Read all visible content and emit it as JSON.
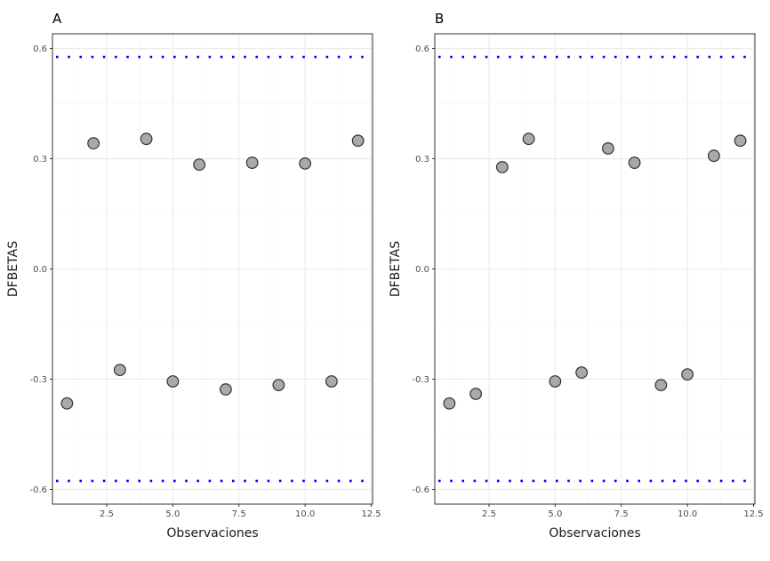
{
  "chart_data": [
    {
      "type": "scatter",
      "title": "A",
      "xlabel": "Observaciones",
      "ylabel": "DFBETAS",
      "xlim": [
        0.45,
        12.55
      ],
      "ylim": [
        -0.64,
        0.64
      ],
      "xticks": [
        2.5,
        5.0,
        7.5,
        10.0,
        12.5
      ],
      "xtick_labels": [
        "2.5",
        "5.0",
        "7.5",
        "10.0",
        "12.5"
      ],
      "yticks": [
        -0.6,
        -0.3,
        0.0,
        0.3,
        0.6
      ],
      "ytick_labels": [
        "-0.6",
        "-0.3",
        "0.0",
        "0.3",
        "0.6"
      ],
      "grid": true,
      "thresholds": [
        0.577,
        -0.577
      ],
      "threshold_color": "#0000ff",
      "x": [
        1,
        2,
        3,
        4,
        5,
        6,
        7,
        8,
        9,
        10,
        11,
        12
      ],
      "y": [
        -0.366,
        0.342,
        -0.275,
        0.354,
        -0.306,
        0.284,
        -0.328,
        0.289,
        -0.316,
        0.287,
        -0.306,
        0.349
      ]
    },
    {
      "type": "scatter",
      "title": "B",
      "xlabel": "Observaciones",
      "ylabel": "DFBETAS",
      "xlim": [
        0.45,
        12.55
      ],
      "ylim": [
        -0.64,
        0.64
      ],
      "xticks": [
        2.5,
        5.0,
        7.5,
        10.0,
        12.5
      ],
      "xtick_labels": [
        "2.5",
        "5.0",
        "7.5",
        "10.0",
        "12.5"
      ],
      "yticks": [
        -0.6,
        -0.3,
        0.0,
        0.3,
        0.6
      ],
      "ytick_labels": [
        "-0.6",
        "-0.3",
        "0.0",
        "0.3",
        "0.6"
      ],
      "grid": true,
      "thresholds": [
        0.577,
        -0.577
      ],
      "threshold_color": "#0000ff",
      "x": [
        1,
        2,
        3,
        4,
        5,
        6,
        7,
        8,
        9,
        10,
        11,
        12
      ],
      "y": [
        -0.366,
        -0.34,
        0.277,
        0.354,
        -0.306,
        -0.282,
        0.328,
        0.289,
        -0.316,
        -0.287,
        0.308,
        0.349
      ]
    }
  ]
}
